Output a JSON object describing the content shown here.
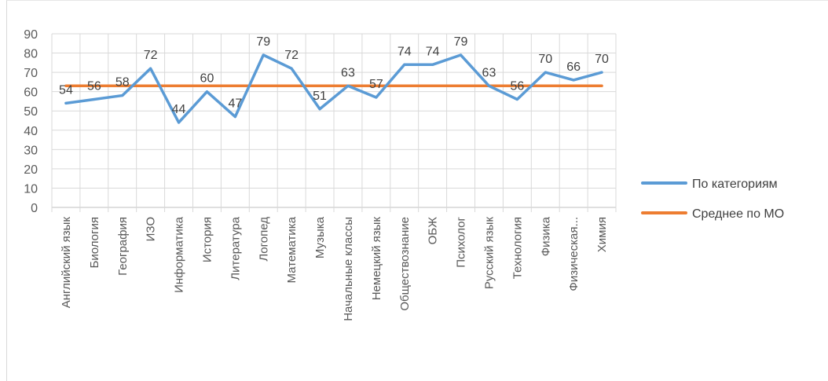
{
  "chart_data": {
    "type": "line",
    "categories": [
      "Английский язык",
      "Биология",
      "География",
      "ИЗО",
      "Информатика",
      "История",
      "Литература",
      "Логопед",
      "Математика",
      "Музыка",
      "Начальные классы",
      "Немецкий язык",
      "Обществознание",
      "ОБЖ",
      "Психолог",
      "Русский язык",
      "Технология",
      "Физика",
      "Физическая...",
      "Химия"
    ],
    "series": [
      {
        "name": "По категориям",
        "color": "#5b9bd5",
        "values": [
          54,
          56,
          58,
          72,
          44,
          60,
          47,
          79,
          72,
          51,
          63,
          57,
          74,
          74,
          79,
          63,
          56,
          70,
          66,
          70
        ]
      },
      {
        "name": "Среднее по МО",
        "color": "#ed7d31",
        "values": [
          63,
          63,
          63,
          63,
          63,
          63,
          63,
          63,
          63,
          63,
          63,
          63,
          63,
          63,
          63,
          63,
          63,
          63,
          63,
          63
        ]
      }
    ],
    "data_labels": [
      "54",
      "56",
      "58",
      "72",
      "44",
      "60",
      "47",
      "79",
      "72",
      "51",
      "63",
      "57",
      "74",
      "74",
      "79",
      "63",
      "56",
      "70",
      "66",
      "70"
    ],
    "y_ticks": [
      "0",
      "10",
      "20",
      "30",
      "40",
      "50",
      "60",
      "70",
      "80",
      "90"
    ],
    "ylim": [
      0,
      90
    ],
    "grid": true,
    "legend": "right"
  }
}
